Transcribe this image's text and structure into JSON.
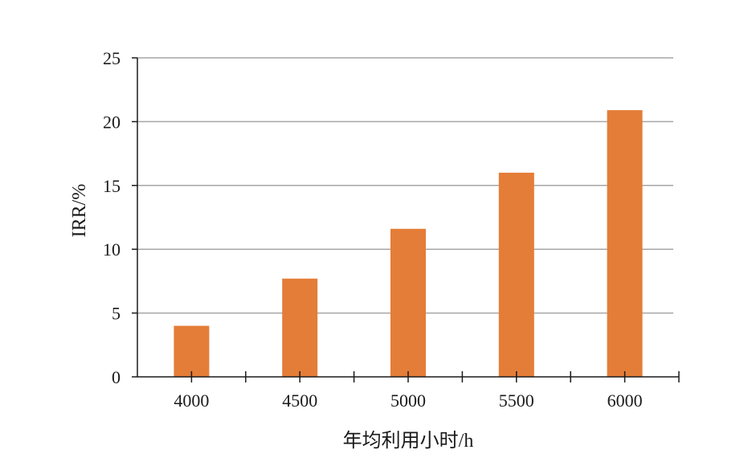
{
  "chart_data": {
    "type": "bar",
    "title": "",
    "xlabel": "年均利用小时/h",
    "ylabel": "IRR/%",
    "categories": [
      "4000",
      "4500",
      "5000",
      "5500",
      "6000"
    ],
    "values": [
      4.0,
      7.7,
      11.6,
      16.0,
      20.9
    ],
    "ylim": [
      0,
      25
    ],
    "yticks": [
      "0",
      "5",
      "10",
      "15",
      "20",
      "25"
    ],
    "grid": "horizontal",
    "legend": "none",
    "bar_color": "#E47D38",
    "grid_color": "#A6A6A6",
    "axis_color": "#1a1a1a"
  }
}
